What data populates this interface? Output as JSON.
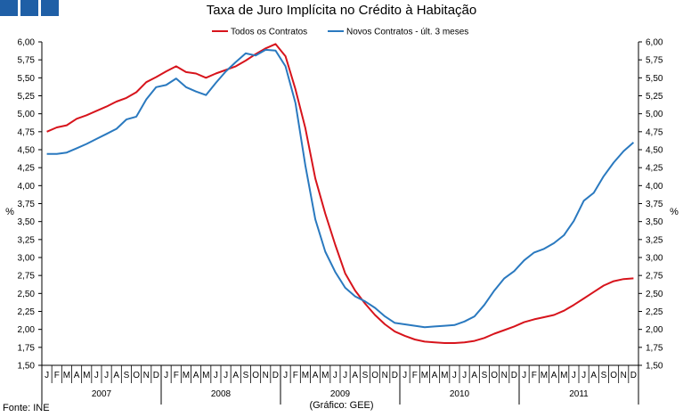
{
  "header": {
    "title": "Taxa de Juro Implícita no Crédito à Habitação",
    "source": "Fonte: INE",
    "credit": "(Gráfico: GEE)",
    "logo_color": "#1f5fa6"
  },
  "chart_data": {
    "type": "line",
    "title": "Taxa de Juro Implícita no Crédito à Habitação",
    "ylabel_left": "%",
    "ylabel_right": "%",
    "ylim": [
      1.5,
      6.0
    ],
    "ytick_step": 0.25,
    "yticks": [
      "1,50",
      "1,75",
      "2,00",
      "2,25",
      "2,50",
      "2,75",
      "3,00",
      "3,25",
      "3,50",
      "3,75",
      "4,00",
      "4,25",
      "4,50",
      "4,75",
      "5,00",
      "5,25",
      "5,50",
      "5,75",
      "6,00"
    ],
    "month_labels": [
      "J",
      "F",
      "M",
      "A",
      "M",
      "J",
      "J",
      "A",
      "S",
      "O",
      "N",
      "D"
    ],
    "years": [
      "2007",
      "2008",
      "2009",
      "2010",
      "2011"
    ],
    "grid": false,
    "legend_position": "top-center",
    "series": [
      {
        "name": "Todos os Contratos",
        "color": "#d7141c",
        "values": [
          4.75,
          4.81,
          4.84,
          4.93,
          4.98,
          5.04,
          5.1,
          5.17,
          5.22,
          5.3,
          5.44,
          5.51,
          5.59,
          5.66,
          5.58,
          5.56,
          5.5,
          5.56,
          5.61,
          5.66,
          5.74,
          5.83,
          5.91,
          5.97,
          5.8,
          5.34,
          4.8,
          4.1,
          3.61,
          3.18,
          2.78,
          2.54,
          2.36,
          2.2,
          2.07,
          1.97,
          1.91,
          1.86,
          1.83,
          1.82,
          1.81,
          1.81,
          1.82,
          1.84,
          1.88,
          1.94,
          1.99,
          2.04,
          2.1,
          2.14,
          2.17,
          2.2,
          2.26,
          2.34,
          2.43,
          2.52,
          2.61,
          2.67,
          2.7,
          2.71
        ]
      },
      {
        "name": "Novos Contratos - últ. 3 meses",
        "color": "#2a79bf",
        "values": [
          4.44,
          4.44,
          4.46,
          4.52,
          4.58,
          4.65,
          4.72,
          4.79,
          4.92,
          4.96,
          5.2,
          5.37,
          5.4,
          5.49,
          5.37,
          5.31,
          5.26,
          5.43,
          5.59,
          5.72,
          5.84,
          5.81,
          5.89,
          5.88,
          5.66,
          5.15,
          4.28,
          3.53,
          3.08,
          2.8,
          2.58,
          2.46,
          2.39,
          2.3,
          2.18,
          2.09,
          2.07,
          2.05,
          2.03,
          2.04,
          2.05,
          2.06,
          2.11,
          2.18,
          2.34,
          2.54,
          2.71,
          2.81,
          2.96,
          3.07,
          3.12,
          3.2,
          3.31,
          3.51,
          3.79,
          3.9,
          4.13,
          4.32,
          4.48,
          4.6
        ]
      }
    ]
  }
}
